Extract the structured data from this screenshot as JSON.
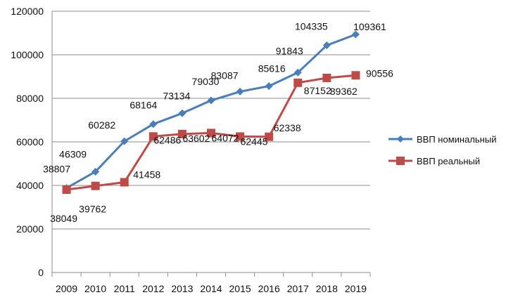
{
  "chart_data": {
    "type": "line",
    "categories": [
      "2009",
      "2010",
      "2011",
      "2012",
      "2013",
      "2014",
      "2015",
      "2016",
      "2017",
      "2018",
      "2019"
    ],
    "ylim": [
      0,
      120000
    ],
    "yticks": [
      0,
      20000,
      40000,
      60000,
      80000,
      100000,
      120000
    ],
    "grid": true,
    "legend_position": "right",
    "series": [
      {
        "name": "ВВП номинальный",
        "color": "#4a7ebb",
        "marker": "diamond",
        "values": [
          38807,
          46309,
          60282,
          68164,
          73134,
          79030,
          83087,
          85616,
          91843,
          104335,
          109361
        ]
      },
      {
        "name": "ВВП реальный",
        "color": "#be4b48",
        "marker": "square",
        "values": [
          38049,
          39762,
          41458,
          62486,
          63602,
          64072,
          62445,
          62338,
          87152,
          89362,
          90556
        ]
      }
    ]
  }
}
